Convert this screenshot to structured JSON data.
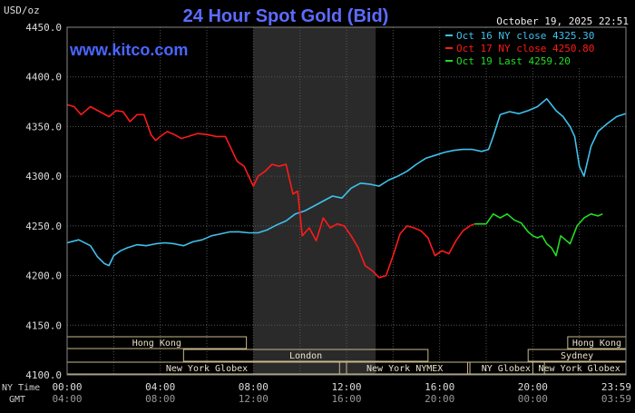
{
  "chart_data": {
    "type": "line",
    "title": "24 Hour Spot Gold (Bid)",
    "watermark": "www.kitco.com",
    "timestamp": "October 19, 2025 22:51",
    "ylabel": "USD/oz",
    "ylim": [
      4100,
      4450
    ],
    "yticks": [
      "4450.0",
      "4400.0",
      "4350.0",
      "4300.0",
      "4250.0",
      "4200.0",
      "4150.0",
      "4100.0"
    ],
    "xlim": [
      0,
      24
    ],
    "x_ticks_ny": [
      "00:00",
      "04:00",
      "08:00",
      "12:00",
      "16:00",
      "20:00",
      "23:59"
    ],
    "x_ticks_gmt": [
      "04:00",
      "08:00",
      "12:00",
      "16:00",
      "20:00",
      "00:00",
      "03:59"
    ],
    "x_row_labels": [
      "NY Time",
      "GMT"
    ],
    "grid": true,
    "legend_position": "top-right",
    "shaded_region_hours": [
      8,
      13.25
    ],
    "colors": {
      "grid": "#555555",
      "title": "#5c6cff",
      "watermark": "#4a66ff",
      "market_box": "#c8b88a"
    },
    "series": [
      {
        "name": "Oct 16 NY close",
        "value_label": "4325.30",
        "color": "#3fc1ec",
        "x": [
          0,
          0.5,
          1,
          1.3,
          1.6,
          1.8,
          2.0,
          2.3,
          2.6,
          3.0,
          3.4,
          3.8,
          4.2,
          4.6,
          5.0,
          5.4,
          5.8,
          6.2,
          6.6,
          7.0,
          7.4,
          7.8,
          8.2,
          8.6,
          9.0,
          9.4,
          9.8,
          10.2,
          10.6,
          11.0,
          11.4,
          11.8,
          12.2,
          12.6,
          13.0,
          13.4,
          13.8,
          14.2,
          14.6,
          15.0,
          15.4,
          15.8,
          16.2,
          16.6,
          17.0,
          17.4,
          17.8,
          18.1,
          18.3,
          18.6,
          19.0,
          19.4,
          19.8,
          20.2,
          20.6,
          21.0,
          21.3,
          21.6,
          21.8,
          22.0,
          22.2,
          22.5,
          22.8,
          23.2,
          23.6,
          23.98
        ],
        "values": [
          4233,
          4236,
          4230,
          4219,
          4212,
          4210,
          4220,
          4225,
          4228,
          4231,
          4230,
          4232,
          4233,
          4232,
          4230,
          4234,
          4236,
          4240,
          4242,
          4244,
          4244,
          4243,
          4243,
          4246,
          4251,
          4255,
          4262,
          4265,
          4270,
          4275,
          4280,
          4278,
          4288,
          4293,
          4292,
          4290,
          4296,
          4300,
          4305,
          4312,
          4318,
          4321,
          4324,
          4326,
          4327,
          4327,
          4325,
          4327,
          4340,
          4362,
          4365,
          4363,
          4366,
          4370,
          4378,
          4366,
          4360,
          4350,
          4340,
          4310,
          4300,
          4330,
          4345,
          4353,
          4360,
          4363
        ]
      },
      {
        "name": "Oct 17 NY close",
        "value_label": "4250.80",
        "color": "#ff1a1a",
        "x": [
          0,
          0.3,
          0.6,
          1.0,
          1.4,
          1.8,
          2.1,
          2.4,
          2.7,
          3.0,
          3.3,
          3.6,
          3.8,
          4.0,
          4.3,
          4.6,
          4.9,
          5.2,
          5.6,
          6.0,
          6.4,
          6.8,
          7.0,
          7.3,
          7.6,
          8.0,
          8.2,
          8.5,
          8.8,
          9.1,
          9.4,
          9.7,
          9.9,
          10.1,
          10.4,
          10.7,
          11.0,
          11.3,
          11.6,
          11.9,
          12.2,
          12.5,
          12.8,
          13.1,
          13.4,
          13.7,
          14.0,
          14.3,
          14.6,
          14.9,
          15.2,
          15.5,
          15.8,
          16.1,
          16.4,
          16.7,
          17.0,
          17.3,
          17.5
        ],
        "values": [
          4372,
          4370,
          4362,
          4370,
          4365,
          4360,
          4366,
          4365,
          4355,
          4362,
          4362,
          4342,
          4336,
          4340,
          4345,
          4342,
          4338,
          4340,
          4343,
          4342,
          4340,
          4340,
          4330,
          4315,
          4310,
          4290,
          4300,
          4305,
          4312,
          4310,
          4312,
          4282,
          4285,
          4240,
          4248,
          4235,
          4258,
          4248,
          4252,
          4250,
          4240,
          4228,
          4210,
          4205,
          4198,
          4200,
          4220,
          4242,
          4250,
          4248,
          4245,
          4238,
          4220,
          4225,
          4222,
          4235,
          4245,
          4250,
          4252
        ]
      },
      {
        "name": "Oct 19 Last",
        "value_label": "4259.20",
        "color": "#22dd22",
        "x": [
          17.5,
          18.0,
          18.3,
          18.6,
          18.9,
          19.2,
          19.5,
          19.8,
          20.0,
          20.2,
          20.4,
          20.6,
          20.8,
          21.0,
          21.2,
          21.4,
          21.6,
          21.9,
          22.2,
          22.5,
          22.8,
          23.0
        ],
        "values": [
          4252,
          4252,
          4262,
          4258,
          4262,
          4256,
          4253,
          4244,
          4240,
          4238,
          4240,
          4232,
          4228,
          4220,
          4240,
          4236,
          4232,
          4250,
          4258,
          4262,
          4260,
          4262
        ]
      }
    ],
    "markets": [
      {
        "label": "Hong Kong",
        "start": 0,
        "end": 7.7,
        "row": 0
      },
      {
        "label": "London",
        "start": 5.0,
        "end": 15.5,
        "row": 1
      },
      {
        "label": "New York Globex",
        "start": 0,
        "end": 12.0,
        "row": 2
      },
      {
        "label": "New York NYMEX",
        "start": 11.7,
        "end": 17.3,
        "row": 2
      },
      {
        "label": "NY Globex",
        "start": 17.2,
        "end": 20.5,
        "row": 2
      },
      {
        "label": "Hong Kong",
        "start": 21.5,
        "end": 24.0,
        "row": 0
      },
      {
        "label": "Sydney",
        "start": 19.8,
        "end": 24.0,
        "row": 1
      },
      {
        "label": "New York Globex",
        "start": 20.0,
        "end": 24.0,
        "row": 2
      }
    ]
  }
}
